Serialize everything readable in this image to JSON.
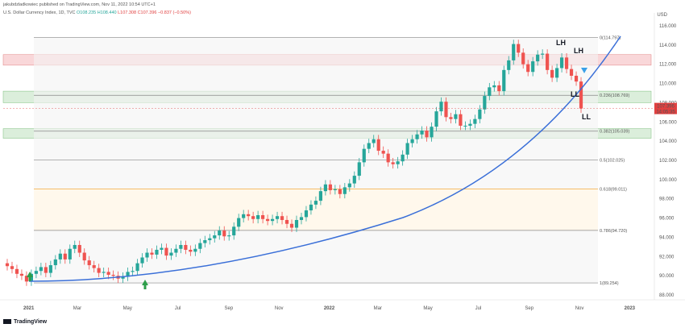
{
  "header": {
    "publisher_line": "jakubdzladkowiec published on TradingView.com, Nov 11, 2022 10:54 UTC+1",
    "symbol": "U.S. Dollar Currency Index, 1D, TVC",
    "open": "O108.235",
    "high": "H108.440",
    "low": "L107.308",
    "close": "C107.396",
    "change": "−0.837 (−0.50%)"
  },
  "currency": "USD",
  "footer": "TradingView",
  "last_price": {
    "value": "107.396",
    "countdown": "14:05:35"
  },
  "annotations": [
    "LH",
    "LH",
    "LL",
    "LL"
  ],
  "chart_data": {
    "type": "line",
    "title": "",
    "ylim": [
      87.5,
      116.5
    ],
    "y_ticks": [
      "116.000",
      "114.000",
      "112.000",
      "110.000",
      "108.000",
      "106.000",
      "104.000",
      "102.000",
      "100.000",
      "98.000",
      "96.000",
      "94.000",
      "92.000",
      "90.000",
      "88.000"
    ],
    "x_ticks": [
      "2021",
      "Mar",
      "May",
      "Jul",
      "Sep",
      "Nov",
      "2022",
      "Mar",
      "May",
      "Jul",
      "Sep",
      "Nov",
      "2023"
    ],
    "series": [
      {
        "values": [
          91.0,
          90.7,
          90.2,
          90.0,
          89.4,
          90.2,
          90.5,
          90.9,
          90.3,
          91.1,
          91.7,
          92.3,
          91.7,
          92.8,
          93.2,
          92.4,
          91.6,
          91.1,
          90.8,
          90.3,
          90.4,
          90.1,
          90.0,
          89.7,
          89.9,
          90.4,
          90.5,
          91.3,
          91.9,
          92.4,
          92.2,
          92.7,
          92.9,
          92.1,
          92.4,
          92.8,
          93.2,
          92.7,
          92.5,
          92.8,
          93.4,
          93.7,
          93.9,
          94.2,
          94.7,
          94.1,
          94.2,
          95.1,
          96.0,
          96.4,
          96.2,
          95.9,
          96.3,
          95.9,
          95.7,
          95.9,
          96.2,
          95.8,
          95.4,
          95.0,
          95.8,
          96.1,
          96.8,
          97.4,
          97.8,
          98.8,
          99.5,
          98.9,
          99.0,
          98.5,
          99.2,
          99.6,
          100.4,
          101.8,
          103.2,
          103.8,
          104.2,
          103.0,
          102.7,
          101.8,
          101.6,
          101.9,
          102.6,
          103.8,
          104.2,
          104.7,
          105.1,
          104.4,
          105.5,
          107.1,
          108.1,
          106.5,
          106.3,
          106.8,
          105.6,
          105.6,
          105.8,
          106.3,
          107.3,
          108.7,
          109.6,
          109.8,
          109.2,
          111.4,
          112.4,
          114.1,
          113.2,
          112.0,
          111.2,
          112.3,
          113.0,
          113.1,
          111.4,
          110.6,
          111.6,
          112.7,
          111.5,
          110.8,
          110.2,
          107.4
        ],
        "x": [
          "2021-01-01",
          "2021-01-08",
          "2021-01-15",
          "2021-01-22",
          "2021-01-29",
          "2021-02-05",
          "2021-02-12",
          "2021-02-19",
          "2021-02-26",
          "2021-03-05",
          "2021-03-12",
          "2021-03-19",
          "2021-03-26",
          "2021-04-02",
          "2021-04-09",
          "2021-04-16",
          "2021-04-23",
          "2021-04-30",
          "2021-05-07",
          "2021-05-14",
          "2021-05-21",
          "2021-05-28",
          "2021-06-04",
          "2021-06-11",
          "2021-06-18",
          "2021-06-25",
          "2021-07-02",
          "2021-07-09",
          "2021-07-16",
          "2021-07-23",
          "2021-07-30",
          "2021-08-06",
          "2021-08-13",
          "2021-08-20",
          "2021-08-27",
          "2021-09-03",
          "2021-09-10",
          "2021-09-17",
          "2021-09-24",
          "2021-10-01",
          "2021-10-08",
          "2021-10-15",
          "2021-10-22",
          "2021-10-29",
          "2021-11-05",
          "2021-11-12",
          "2021-11-19",
          "2021-11-26",
          "2021-12-03",
          "2021-12-10",
          "2021-12-17",
          "2021-12-24",
          "2021-12-31",
          "2022-01-07",
          "2022-01-14",
          "2022-01-21",
          "2022-01-28",
          "2022-02-04",
          "2022-02-11",
          "2022-02-18",
          "2022-02-25",
          "2022-03-04",
          "2022-03-11",
          "2022-03-18",
          "2022-03-25",
          "2022-04-01",
          "2022-04-08",
          "2022-04-15",
          "2022-04-22",
          "2022-04-29",
          "2022-05-06",
          "2022-05-13",
          "2022-05-20",
          "2022-05-27",
          "2022-06-03",
          "2022-06-10",
          "2022-06-17",
          "2022-06-24",
          "2022-07-01",
          "2022-07-08",
          "2022-07-15",
          "2022-07-22",
          "2022-07-29",
          "2022-08-05",
          "2022-08-12",
          "2022-08-19",
          "2022-08-26",
          "2022-09-02",
          "2022-09-09",
          "2022-09-16",
          "2022-09-23",
          "2022-09-30",
          "2022-10-07",
          "2022-10-14",
          "2022-10-21",
          "2022-10-28",
          "2022-11-04",
          "2022-11-11",
          "2022-11-11",
          "2022-11-11",
          "2022-11-11",
          "2022-11-11",
          "2022-11-11",
          "2022-11-11",
          "2022-11-11",
          "2022-11-11",
          "2022-11-11",
          "2022-11-11",
          "2022-11-11",
          "2022-11-11",
          "2022-11-11",
          "2022-11-11",
          "2022-11-11",
          "2022-11-11",
          "2022-11-11",
          "2022-11-11",
          "2022-11-11",
          "2022-11-11",
          "2022-11-11",
          "2022-11-11"
        ]
      }
    ],
    "fib_levels": [
      {
        "label": "0(114.797)",
        "value": 114.797,
        "color": "#888888"
      },
      {
        "label": "0.236(108.769)",
        "value": 108.769,
        "color": "#888888"
      },
      {
        "label": "0.382(105.039)",
        "value": 105.039,
        "color": "#888888"
      },
      {
        "label": "0.5(102.025)",
        "value": 102.025,
        "color": "#888888"
      },
      {
        "label": "0.618(99.011)",
        "value": 99.011,
        "color": "#f2a93b"
      },
      {
        "label": "0.786(94.720)",
        "value": 94.72,
        "color": "#888888"
      },
      {
        "label": "1(89.254)",
        "value": 89.254,
        "color": "#888888"
      }
    ],
    "zones": [
      {
        "from": 111.9,
        "to": 113.0,
        "color": "#f7c9cc"
      },
      {
        "from": 108.0,
        "to": 109.2,
        "color": "#cfe8cf"
      },
      {
        "from": 104.3,
        "to": 105.3,
        "color": "#cfe8cf"
      }
    ],
    "colors": {
      "up": "#26a69a",
      "down": "#ef5350",
      "trendline": "#3a6fd8",
      "marker": "#2e9e4a",
      "last_price": "#e04040"
    }
  }
}
